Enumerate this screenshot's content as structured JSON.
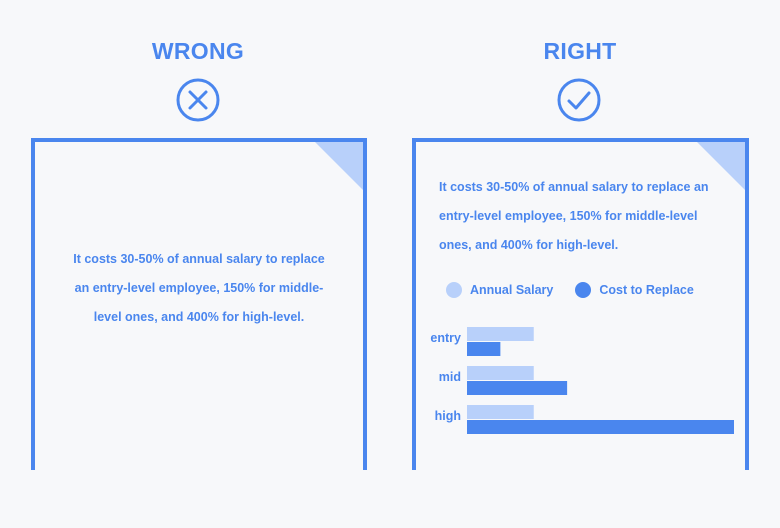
{
  "colors": {
    "primary": "#4a86ee",
    "light": "#b8d0fa",
    "background": "#f7f8fa"
  },
  "wrong": {
    "title": "WRONG",
    "icon": "x-circle-icon",
    "text": "It costs 30-50% of annual salary to replace an entry-level employee, 150% for middle-level ones, and 400% for high-level."
  },
  "right": {
    "title": "RIGHT",
    "icon": "check-circle-icon",
    "text": "It costs 30-50% of annual salary to replace an entry-level employee, 150% for middle-level ones, and 400% for high-level."
  },
  "chart_data": {
    "type": "bar",
    "orientation": "horizontal",
    "categories": [
      "entry",
      "mid",
      "high"
    ],
    "series": [
      {
        "name": "Annual Salary",
        "values": [
          100,
          100,
          100
        ],
        "color": "#b8d0fa"
      },
      {
        "name": "Cost to Replace",
        "values": [
          50,
          150,
          400
        ],
        "color": "#4a86ee"
      }
    ],
    "xlim": [
      0,
      400
    ],
    "legend": "top-left",
    "grid": false
  }
}
